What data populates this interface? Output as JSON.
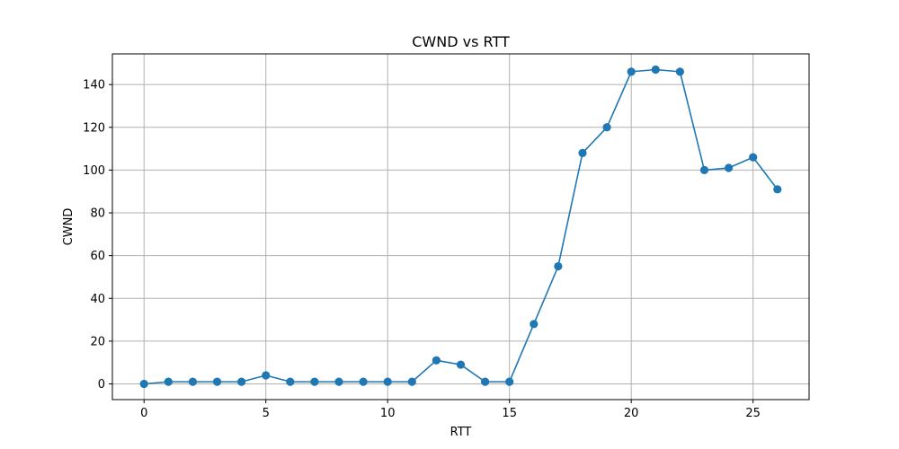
{
  "chart_data": {
    "type": "line",
    "title": "CWND vs RTT",
    "xlabel": "RTT",
    "ylabel": "CWND",
    "xlim": [
      -1.3,
      27.3
    ],
    "ylim": [
      -7.35,
      154.35
    ],
    "xticks": [
      0,
      5,
      10,
      15,
      20,
      25
    ],
    "yticks": [
      0,
      20,
      40,
      60,
      80,
      100,
      120,
      140
    ],
    "grid": true,
    "marker": "circle",
    "series": [
      {
        "color": "#1f77b4",
        "x": [
          0,
          1,
          2,
          3,
          4,
          5,
          6,
          7,
          8,
          9,
          10,
          11,
          12,
          13,
          14,
          15,
          16,
          17,
          18,
          19,
          20,
          21,
          22,
          23,
          24,
          25,
          26
        ],
        "y": [
          0,
          1,
          1,
          1,
          1,
          4,
          1,
          1,
          1,
          1,
          1,
          1,
          11,
          9,
          1,
          1,
          28,
          55,
          108,
          120,
          146,
          147,
          146,
          100,
          101,
          106,
          91
        ]
      }
    ]
  }
}
